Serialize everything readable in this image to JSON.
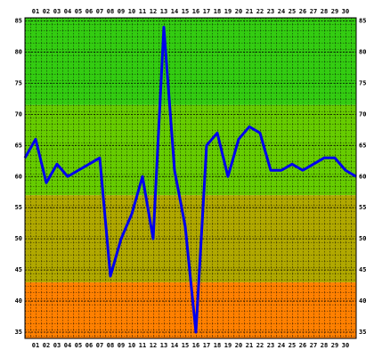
{
  "chart_data": {
    "type": "line",
    "categories": [
      null,
      "01",
      "02",
      "03",
      "04",
      "05",
      "06",
      "07",
      "08",
      "09",
      "10",
      "11",
      "12",
      "13",
      "14",
      "15",
      "16",
      "17",
      "18",
      "19",
      "20",
      "21",
      "22",
      "23",
      "24",
      "25",
      "26",
      "27",
      "28",
      "29",
      "30",
      null
    ],
    "values": [
      63,
      66,
      59,
      62,
      60,
      61,
      62,
      63,
      44,
      50,
      54,
      60,
      50,
      84,
      61,
      52,
      35,
      65,
      67,
      60,
      66,
      68,
      67,
      61,
      61,
      62,
      61,
      62,
      63,
      63,
      61,
      60
    ],
    "color": "#0000ee",
    "ylim": [
      34,
      85.5
    ],
    "yticks": [
      35,
      40,
      45,
      50,
      55,
      60,
      65,
      70,
      75,
      80,
      85
    ],
    "bands": [
      {
        "from": 71.5,
        "to": 85.5,
        "color": "#33cc11"
      },
      {
        "from": 57,
        "to": 71.5,
        "color": "#66cc00"
      },
      {
        "from": 43,
        "to": 57,
        "color": "#b0a800"
      },
      {
        "from": 34,
        "to": 43,
        "color": "#ff8000"
      }
    ],
    "grid": true
  }
}
